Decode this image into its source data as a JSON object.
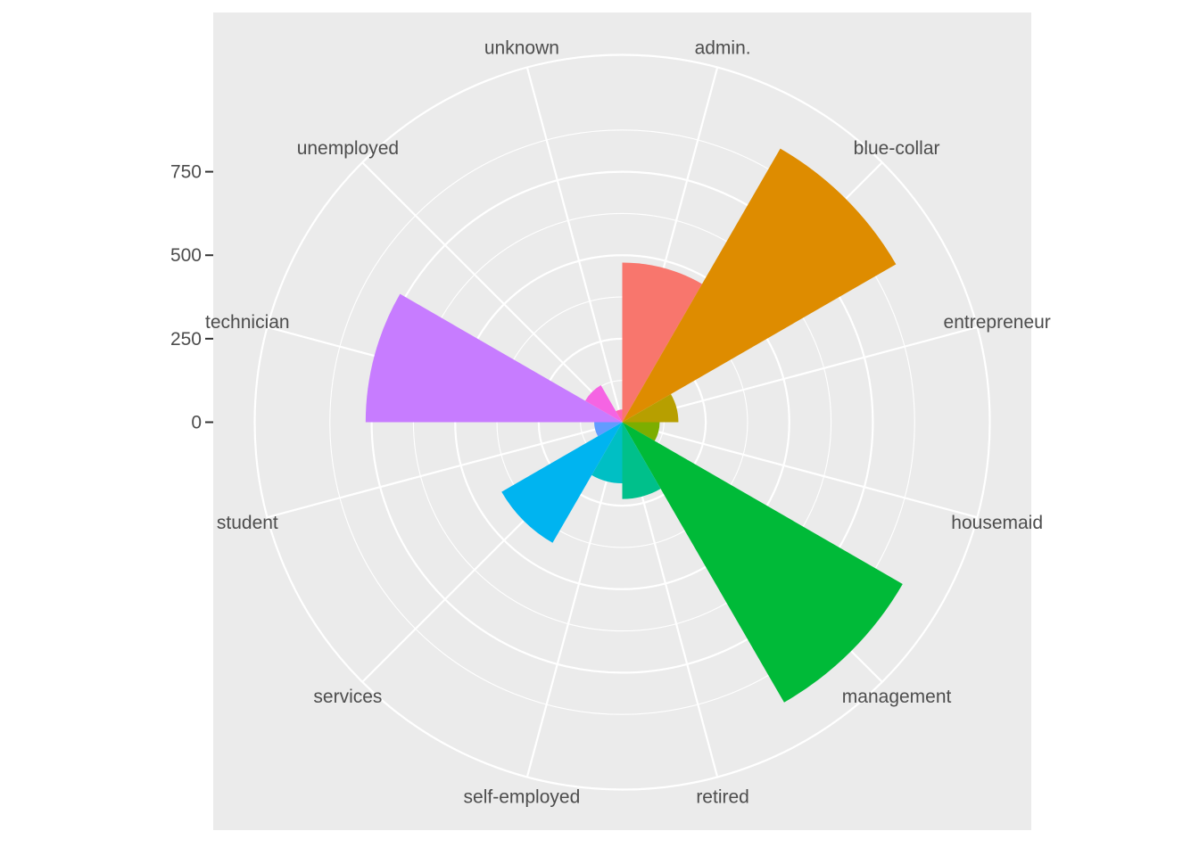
{
  "chart_data": {
    "type": "bar",
    "coord": "polar",
    "categories": [
      "admin.",
      "blue-collar",
      "entrepreneur",
      "housemaid",
      "management",
      "retired",
      "self-employed",
      "services",
      "student",
      "technician",
      "unemployed",
      "unknown"
    ],
    "values": [
      478,
      946,
      168,
      112,
      969,
      230,
      183,
      417,
      84,
      768,
      128,
      38
    ],
    "colors": [
      "#F8766D",
      "#DE8C00",
      "#B79F00",
      "#7CAE00",
      "#00BA38",
      "#00C08B",
      "#00BFC4",
      "#00B4F0",
      "#619CFF",
      "#C77CFF",
      "#F564E3",
      "#FF64B0"
    ],
    "radial_ticks": [
      0,
      250,
      500,
      750
    ],
    "ylim": [
      0,
      1100
    ],
    "panel_background": "#EBEBEB",
    "grid_color": "#FFFFFF",
    "title": "",
    "xlabel": "",
    "ylabel": "",
    "legend": "none"
  }
}
